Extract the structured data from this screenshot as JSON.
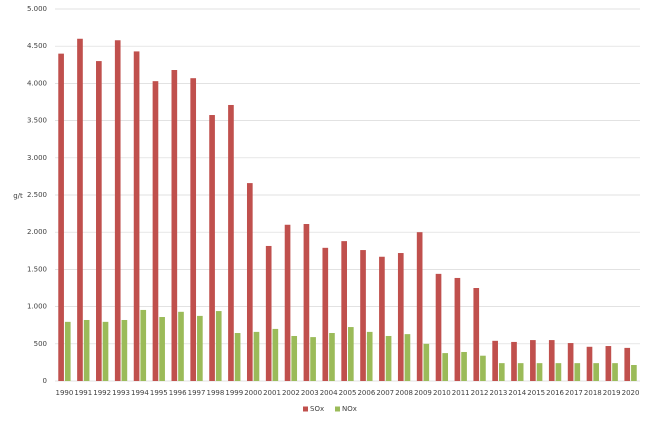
{
  "chart_data": {
    "type": "bar",
    "ylabel": "g/t",
    "categories": [
      "1990",
      "1991",
      "1992",
      "1993",
      "1994",
      "1995",
      "1996",
      "1997",
      "1998",
      "1999",
      "2000",
      "2001",
      "2002",
      "2003",
      "2004",
      "2005",
      "2006",
      "2007",
      "2008",
      "2009",
      "2010",
      "2011",
      "2012",
      "2013",
      "2014",
      "2015",
      "2016",
      "2017",
      "2018",
      "2019",
      "2020"
    ],
    "series": [
      {
        "name": "SOx",
        "color": "#c0504d",
        "values": [
          4400,
          4600,
          4300,
          4580,
          4430,
          4030,
          4180,
          4070,
          3575,
          3710,
          2660,
          1815,
          2100,
          2110,
          1790,
          1880,
          1760,
          1670,
          1720,
          2000,
          1440,
          1385,
          1250,
          540,
          525,
          550,
          550,
          510,
          460,
          470,
          445
        ]
      },
      {
        "name": "NOx",
        "color": "#9bbb59",
        "values": [
          795,
          820,
          795,
          820,
          955,
          860,
          930,
          875,
          940,
          645,
          660,
          700,
          605,
          590,
          645,
          725,
          660,
          605,
          630,
          500,
          375,
          390,
          340,
          240,
          240,
          240,
          240,
          240,
          240,
          240,
          215
        ]
      }
    ],
    "ylim": [
      0,
      5000
    ],
    "yticks": [
      0,
      500,
      {
        "value": 1000,
        "label": "1.000"
      },
      {
        "value": 1500,
        "label": "1.500"
      },
      {
        "value": 2000,
        "label": "2.000"
      },
      {
        "value": 2500,
        "label": "2.500"
      },
      {
        "value": 3000,
        "label": "3.000"
      },
      {
        "value": 3500,
        "label": "3.500"
      },
      {
        "value": 4000,
        "label": "4.000"
      },
      {
        "value": 4500,
        "label": "4.500"
      },
      {
        "value": 5000,
        "label": "5.000"
      }
    ],
    "grid": true,
    "legend": "bottom"
  }
}
